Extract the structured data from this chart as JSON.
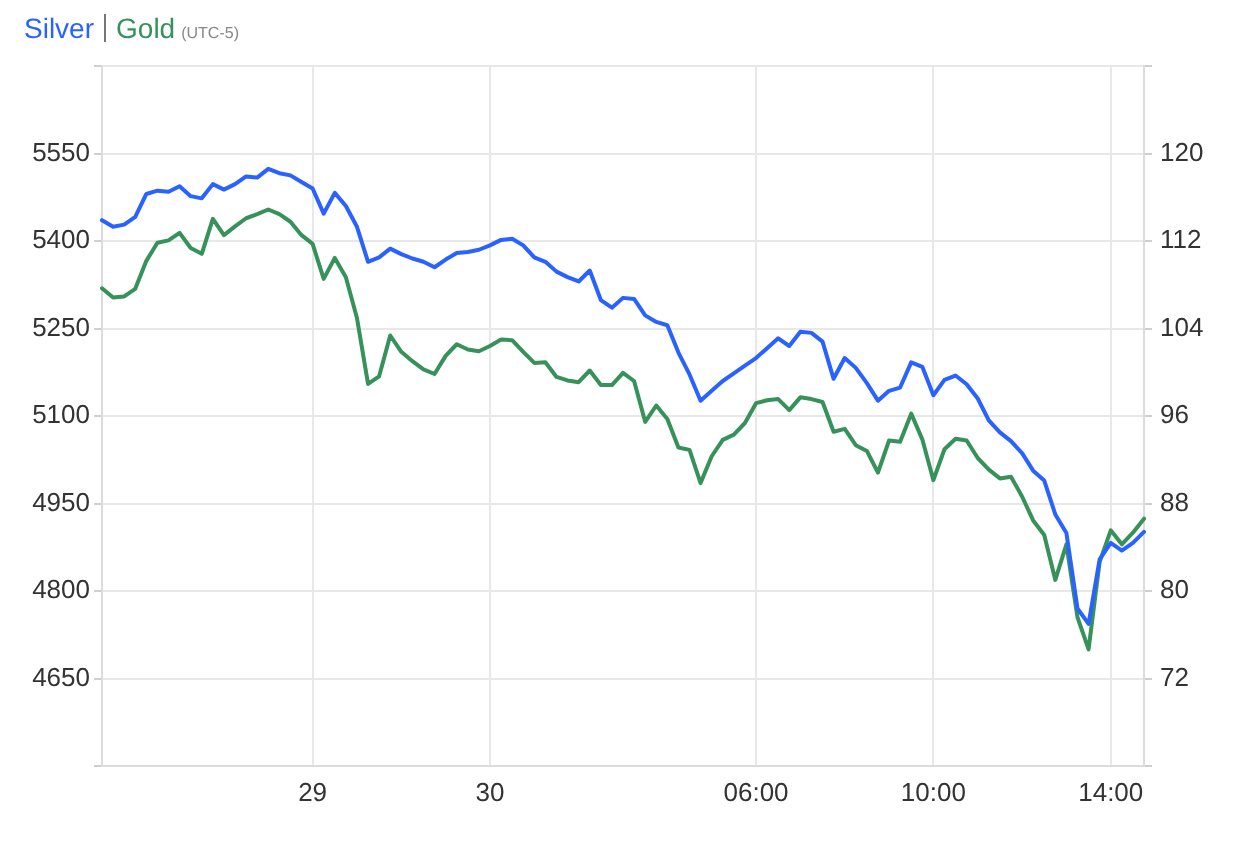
{
  "chart_data": {
    "type": "line",
    "categories": [
      null,
      null,
      null,
      null,
      null,
      null,
      null,
      null,
      null,
      null,
      null,
      null,
      null,
      null,
      null,
      null,
      null,
      null,
      null,
      "29",
      null,
      null,
      null,
      null,
      null,
      null,
      null,
      null,
      null,
      null,
      null,
      null,
      null,
      null,
      null,
      "30",
      null,
      null,
      null,
      null,
      null,
      null,
      null,
      null,
      null,
      null,
      null,
      null,
      null,
      null,
      null,
      null,
      null,
      null,
      null,
      null,
      null,
      null,
      null,
      "06:00",
      null,
      null,
      null,
      null,
      null,
      null,
      null,
      null,
      null,
      null,
      null,
      null,
      null,
      null,
      null,
      "10:00",
      null,
      null,
      null,
      null,
      null,
      null,
      null,
      null,
      null,
      null,
      null,
      null,
      null,
      null,
      null,
      "14:00",
      null,
      null,
      null
    ],
    "series": [
      {
        "name": "Silver",
        "color": "#2962ff",
        "axis": "y2",
        "values": [
          113.9,
          113.3,
          113.5,
          114.2,
          116.3,
          116.6,
          116.5,
          117.0,
          116.1,
          115.9,
          117.2,
          116.7,
          117.2,
          117.9,
          117.8,
          118.6,
          118.2,
          118.0,
          117.4,
          116.8,
          114.5,
          116.4,
          115.2,
          113.3,
          110.1,
          110.5,
          111.3,
          110.8,
          110.4,
          110.1,
          109.6,
          110.3,
          110.9,
          111.0,
          111.2,
          111.6,
          112.1,
          112.2,
          111.6,
          110.5,
          110.1,
          109.2,
          108.7,
          108.3,
          109.3,
          106.6,
          105.9,
          106.8,
          106.7,
          105.2,
          104.6,
          104.3,
          101.8,
          99.8,
          97.4,
          98.3,
          99.2,
          99.9,
          100.6,
          101.3,
          102.2,
          103.1,
          102.4,
          103.7,
          103.6,
          102.8,
          99.4,
          101.3,
          100.4,
          99.0,
          97.4,
          98.3,
          98.6,
          100.9,
          100.5,
          97.9,
          99.3,
          99.7,
          98.9,
          97.6,
          95.6,
          94.5,
          93.7,
          92.6,
          91.0,
          90.1,
          87.0,
          85.3,
          78.4,
          77.0,
          82.9,
          84.4,
          83.7,
          84.4,
          85.4
        ]
      },
      {
        "name": "Gold",
        "color": "#36925a",
        "values": [
          5319,
          5303,
          5305,
          5318,
          5366,
          5397,
          5401,
          5414,
          5388,
          5378,
          5438,
          5410,
          5425,
          5439,
          5446,
          5454,
          5446,
          5433,
          5410,
          5395,
          5335,
          5371,
          5338,
          5268,
          5155,
          5168,
          5238,
          5210,
          5194,
          5180,
          5172,
          5203,
          5223,
          5214,
          5211,
          5220,
          5231,
          5230,
          5210,
          5191,
          5192,
          5167,
          5161,
          5158,
          5178,
          5153,
          5153,
          5174,
          5160,
          5090,
          5118,
          5095,
          5046,
          5042,
          4985,
          5031,
          5059,
          5068,
          5088,
          5122,
          5127,
          5129,
          5110,
          5132,
          5129,
          5124,
          5073,
          5078,
          5050,
          5040,
          5003,
          5058,
          5056,
          5104,
          5060,
          4990,
          5043,
          5061,
          5058,
          5028,
          5008,
          4993,
          4996,
          4962,
          4921,
          4896,
          4819,
          4880,
          4755,
          4700,
          4850,
          4904,
          4880,
          4900,
          4924
        ]
      }
    ],
    "ylim": [
      4500,
      5700
    ],
    "yticks": [
      {
        "value": 4500,
        "label": null
      },
      4650,
      4800,
      4950,
      5100,
      5250,
      5400,
      5550,
      {
        "value": 5700,
        "label": null
      }
    ],
    "y2lim": [
      64,
      128
    ],
    "y2ticks": [
      {
        "value": 64,
        "label": null
      },
      72,
      80,
      88,
      96,
      104,
      112,
      120,
      {
        "value": 128,
        "label": null
      }
    ],
    "annotations": [
      "(UTC-5)"
    ],
    "grid": true,
    "legend": "top left",
    "marker": "none",
    "line_style": "solid"
  }
}
